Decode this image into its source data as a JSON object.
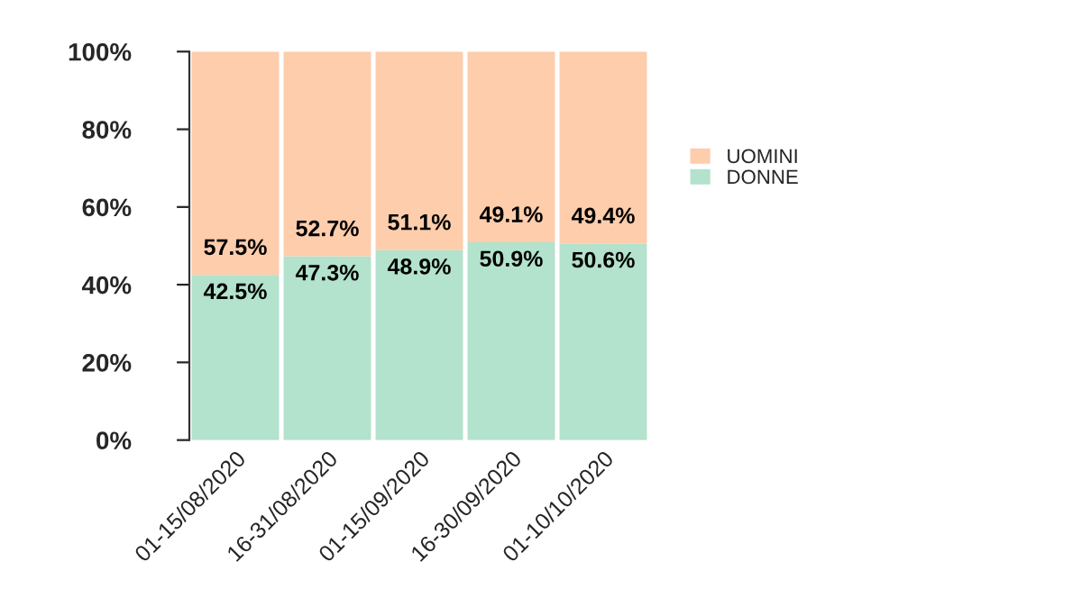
{
  "chart_data": {
    "type": "bar",
    "stacked": true,
    "categories": [
      "01-15/08/2020",
      "16-31/08/2020",
      "01-15/09/2020",
      "16-30/09/2020",
      "01-10/10/2020"
    ],
    "series": [
      {
        "name": "DONNE",
        "color": "#b3e2cd",
        "values": [
          42.5,
          47.3,
          48.9,
          50.9,
          50.6
        ],
        "value_labels": [
          "42.5%",
          "47.3%",
          "48.9%",
          "50.9%",
          "50.6%"
        ]
      },
      {
        "name": "UOMINI",
        "color": "#fdcdac",
        "values": [
          57.5,
          52.7,
          51.1,
          49.1,
          49.4
        ],
        "value_labels": [
          "57.5%",
          "52.7%",
          "51.1%",
          "49.1%",
          "49.4%"
        ]
      }
    ],
    "ylim": [
      0,
      100
    ],
    "yticks": [
      {
        "value": 0,
        "label": "0%"
      },
      {
        "value": 20,
        "label": "20%"
      },
      {
        "value": 40,
        "label": "40%"
      },
      {
        "value": 60,
        "label": "60%"
      },
      {
        "value": 80,
        "label": "80%"
      },
      {
        "value": 100,
        "label": "100%"
      }
    ],
    "legend": "right",
    "grid": false
  }
}
